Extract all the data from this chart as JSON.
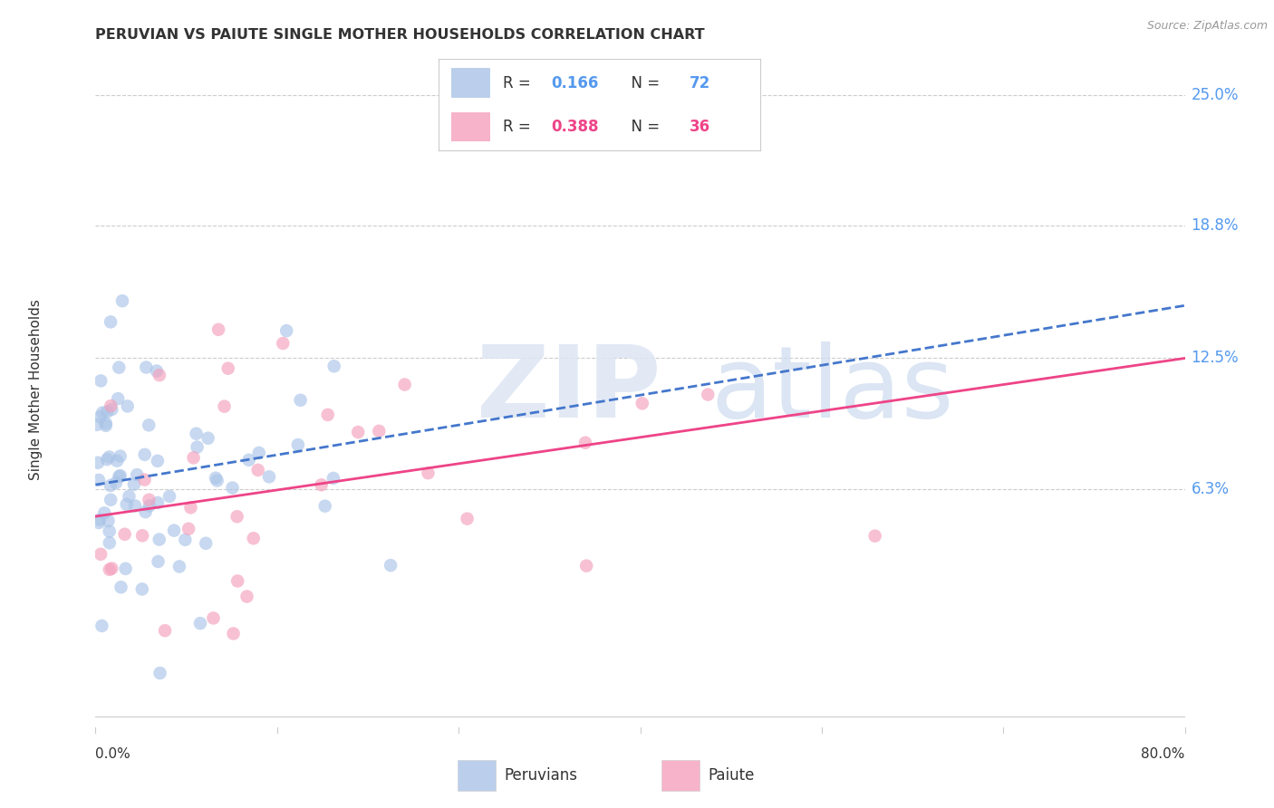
{
  "title": "PERUVIAN VS PAIUTE SINGLE MOTHER HOUSEHOLDS CORRELATION CHART",
  "source": "Source: ZipAtlas.com",
  "ylabel": "Single Mother Households",
  "y_ticks_right": [
    25.0,
    18.8,
    12.5,
    6.3
  ],
  "x_min": 0.0,
  "x_max": 80.0,
  "y_min": -5.0,
  "y_max": 27.0,
  "peru_R": 0.166,
  "peru_N": 72,
  "paiute_R": 0.388,
  "paiute_N": 36,
  "blue_scatter": "#aac4e8",
  "pink_scatter": "#f4a0bc",
  "blue_line": "#4477cc",
  "pink_line": "#ee4488",
  "grid_color": "#cccccc",
  "text_color": "#333333",
  "axis_label_color": "#5599ee",
  "watermark_zip_color": "#dde6f4",
  "watermark_atlas_color": "#d0ddf0",
  "background": "#ffffff",
  "legend_border_color": "#cccccc",
  "bottom_legend_labels": [
    "Peruvians",
    "Paiute"
  ],
  "source_color": "#999999"
}
